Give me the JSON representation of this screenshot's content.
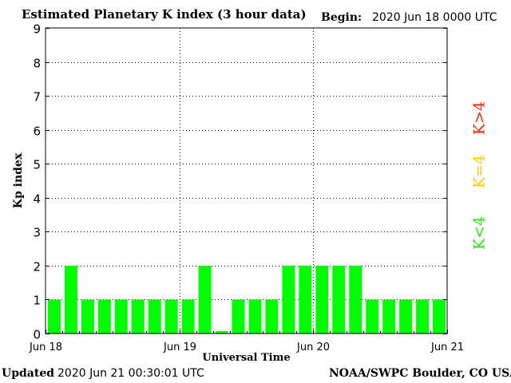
{
  "header": {
    "title": "Estimated Planetary K index (3 hour data)",
    "begin_label": "Begin:",
    "begin_value": "2020 Jun 18 0000 UTC"
  },
  "footer": {
    "updated_label": "Updated",
    "updated_value": "2020 Jun 21 00:30:01 UTC",
    "credit": "NOAA/SWPC Boulder, CO USA"
  },
  "legend": [
    {
      "label": "K>4",
      "color": "#ff2200"
    },
    {
      "label": "K=4",
      "color": "#ffcc00"
    },
    {
      "label": "K<4",
      "color": "#22ee00"
    }
  ],
  "chart_data": {
    "type": "bar",
    "title": "Estimated Planetary K index (3 hour data)",
    "xlabel": "Universal Time",
    "ylabel": "Kp index",
    "ylim": [
      0,
      9
    ],
    "yticks": [
      0,
      1,
      2,
      3,
      4,
      5,
      6,
      7,
      8,
      9
    ],
    "xticks": [
      "Jun 18",
      "Jun 19",
      "Jun 20",
      "Jun 21"
    ],
    "grid": true,
    "bar_color": "#00ff00",
    "values": [
      1,
      2,
      1,
      1,
      1,
      1,
      1,
      1,
      1,
      2,
      0.07,
      1,
      1,
      1,
      2,
      2,
      2,
      2,
      2,
      1,
      1,
      1,
      1,
      1
    ]
  }
}
